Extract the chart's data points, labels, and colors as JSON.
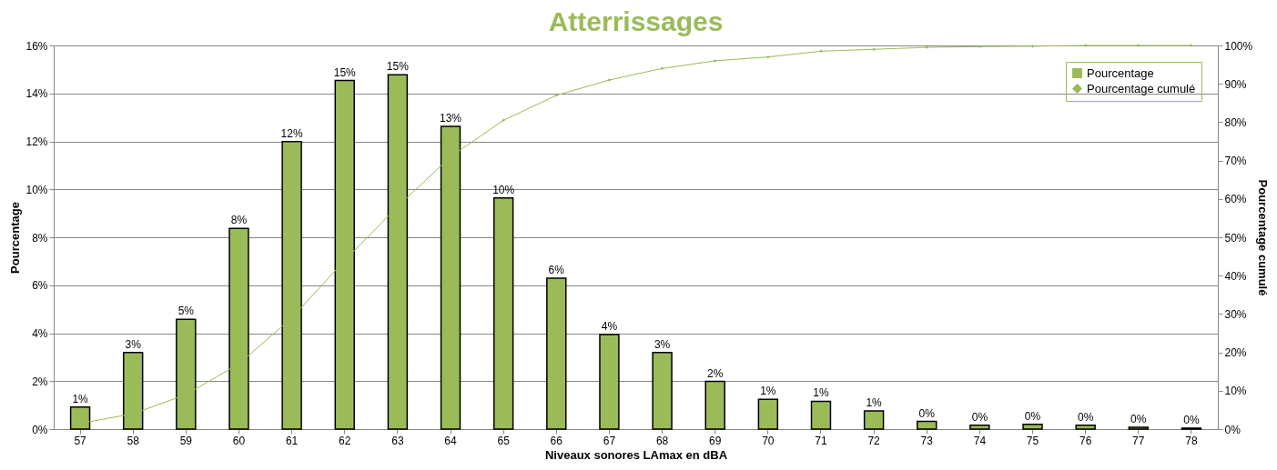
{
  "chart_data": {
    "type": "bar",
    "title": "Atterrissages",
    "xlabel": "Niveaux sonores LAmax en dBA",
    "ylabel": "Pourcentage",
    "y2label": "Pourcentage cumulé",
    "categories": [
      "57",
      "58",
      "59",
      "60",
      "61",
      "62",
      "63",
      "64",
      "65",
      "66",
      "67",
      "68",
      "69",
      "70",
      "71",
      "72",
      "73",
      "74",
      "75",
      "76",
      "77",
      "78"
    ],
    "series": [
      {
        "name": "Pourcentage",
        "color": "#9bbb59",
        "values": [
          0.92,
          3.19,
          4.58,
          8.37,
          11.99,
          14.54,
          14.78,
          12.63,
          9.64,
          6.29,
          3.94,
          3.19,
          1.99,
          1.24,
          1.16,
          0.76,
          0.32,
          0.16,
          0.2,
          0.16,
          0.08,
          0.04
        ],
        "value_labels": [
          "1%",
          "3%",
          "5%",
          "8%",
          "12%",
          "15%",
          "15%",
          "13%",
          "10%",
          "6%",
          "4%",
          "3%",
          "2%",
          "1%",
          "1%",
          "1%",
          "0%",
          "0%",
          "0%",
          "0%",
          "0%",
          "0%"
        ]
      },
      {
        "name": "Pourcentage cumulé",
        "type": "line",
        "axis": "y2",
        "color": "#9bbb59",
        "marker": "diamond",
        "values": [
          1.5,
          4,
          9,
          17,
          29,
          44,
          58,
          71,
          80.5,
          87,
          91,
          94,
          96,
          97,
          98.5,
          99,
          99.5,
          99.7,
          99.8,
          100,
          100,
          100
        ]
      }
    ],
    "ylim": [
      0,
      16
    ],
    "yticks": [
      {
        "value": 0,
        "label": "0%"
      },
      {
        "value": 2,
        "label": "2%"
      },
      {
        "value": 4,
        "label": "4%"
      },
      {
        "value": 6,
        "label": "6%"
      },
      {
        "value": 8,
        "label": "8%"
      },
      {
        "value": 10,
        "label": "10%"
      },
      {
        "value": 12,
        "label": "12%"
      },
      {
        "value": 14,
        "label": "14%"
      },
      {
        "value": 16,
        "label": "16%"
      }
    ],
    "y2lim": [
      0,
      100
    ],
    "y2ticks": [
      {
        "value": 0,
        "label": "0%"
      },
      {
        "value": 10,
        "label": "10%"
      },
      {
        "value": 20,
        "label": "20%"
      },
      {
        "value": 30,
        "label": "30%"
      },
      {
        "value": 40,
        "label": "40%"
      },
      {
        "value": 50,
        "label": "50%"
      },
      {
        "value": 60,
        "label": "60%"
      },
      {
        "value": 70,
        "label": "70%"
      },
      {
        "value": 80,
        "label": "80%"
      },
      {
        "value": 90,
        "label": "90%"
      },
      {
        "value": 100,
        "label": "100%"
      }
    ],
    "grid": "y",
    "legend": "top right"
  }
}
